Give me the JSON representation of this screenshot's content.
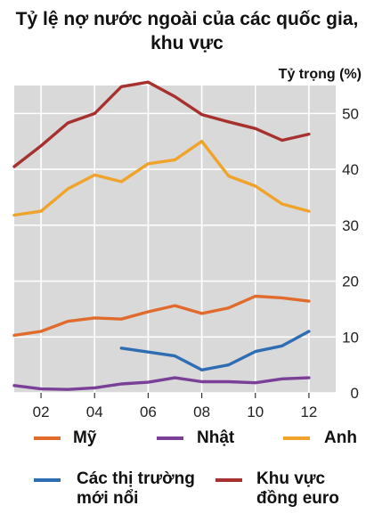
{
  "chart_data": {
    "type": "line",
    "title": "Tỷ lệ nợ nước ngoài của các quốc gia, khu vực",
    "ylabel": "Tỷ trọng (%)",
    "xlabel": "",
    "xlim": [
      2001,
      2013
    ],
    "ylim": [
      0,
      55
    ],
    "grid": true,
    "x_ticks": [
      2002,
      2004,
      2006,
      2008,
      2010,
      2012
    ],
    "x_tick_labels": [
      "02",
      "04",
      "06",
      "08",
      "10",
      "12"
    ],
    "y_ticks": [
      0,
      10,
      20,
      30,
      40,
      50
    ],
    "y_tick_labels": [
      "0",
      "10",
      "20",
      "30",
      "40",
      "50"
    ],
    "legend_position": "bottom",
    "series": [
      {
        "name": "Mỹ",
        "color": "#e06b2d",
        "x": [
          2001,
          2002,
          2003,
          2004,
          2005,
          2006,
          2007,
          2008,
          2009,
          2010,
          2011,
          2012
        ],
        "y": [
          10.3,
          11.0,
          12.8,
          13.4,
          13.2,
          14.5,
          15.6,
          14.2,
          15.2,
          17.3,
          17.0,
          16.4
        ]
      },
      {
        "name": "Nhật",
        "color": "#7a3f97",
        "x": [
          2001,
          2002,
          2003,
          2004,
          2005,
          2006,
          2007,
          2008,
          2009,
          2010,
          2011,
          2012
        ],
        "y": [
          1.3,
          0.7,
          0.6,
          0.9,
          1.6,
          1.9,
          2.7,
          2.0,
          2.0,
          1.8,
          2.5,
          2.7
        ]
      },
      {
        "name": "Anh",
        "color": "#f0a32a",
        "x": [
          2001,
          2002,
          2003,
          2004,
          2005,
          2006,
          2007,
          2008,
          2009,
          2010,
          2011,
          2012
        ],
        "y": [
          31.8,
          32.5,
          36.5,
          39.0,
          37.8,
          41.0,
          41.7,
          45.0,
          38.8,
          37.0,
          33.8,
          32.5
        ]
      },
      {
        "name": "Các thị trường mới nổi",
        "color": "#2f6db3",
        "x": [
          2005,
          2006,
          2007,
          2008,
          2009,
          2010,
          2011,
          2012
        ],
        "y": [
          8.0,
          7.3,
          6.6,
          4.1,
          5.0,
          7.4,
          8.4,
          11.0
        ]
      },
      {
        "name": "Khu vực đồng euro",
        "color": "#a6312e",
        "x": [
          2001,
          2002,
          2003,
          2004,
          2005,
          2006,
          2007,
          2008,
          2009,
          2010,
          2011,
          2012
        ],
        "y": [
          40.5,
          44.2,
          48.3,
          50.0,
          54.8,
          55.6,
          53.0,
          49.8,
          48.5,
          47.3,
          45.2,
          46.3
        ]
      }
    ]
  }
}
